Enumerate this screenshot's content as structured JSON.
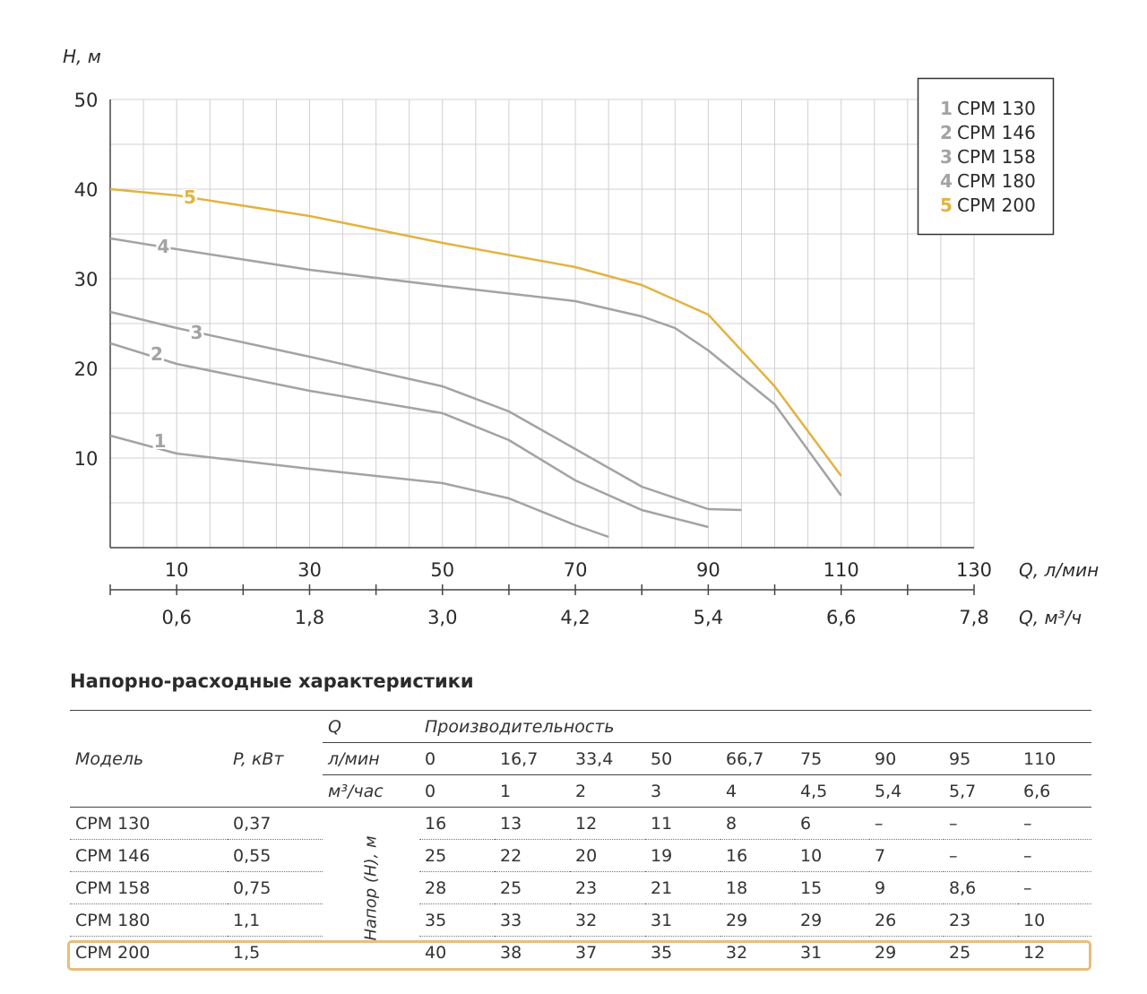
{
  "chart_data": {
    "type": "line",
    "ylabel": "H, м",
    "xlabel": "Q, л/мин",
    "x2label": "Q, м³/ч",
    "ylim": [
      0,
      50
    ],
    "xlim": [
      0,
      130
    ],
    "yticks": [
      "10",
      "20",
      "30",
      "40",
      "50"
    ],
    "xticks": [
      "10",
      "30",
      "50",
      "70",
      "90",
      "110",
      "130"
    ],
    "x2ticks": [
      "0,6",
      "1,8",
      "3,0",
      "4,2",
      "5,4",
      "6,6",
      "7,8"
    ],
    "grid": true,
    "legend_position": "top-right",
    "legend": [
      {
        "num": "1",
        "name": "CPM 130"
      },
      {
        "num": "2",
        "name": "CPM 146"
      },
      {
        "num": "3",
        "name": "CPM 158"
      },
      {
        "num": "4",
        "name": "CPM 180"
      },
      {
        "num": "5",
        "name": "CPM 200"
      }
    ],
    "series": [
      {
        "name": "CPM 130",
        "label": "1",
        "color": "#a3a3a3",
        "label_at": [
          7.5,
          11.5
        ],
        "points": [
          [
            0,
            12.5
          ],
          [
            10,
            10.5
          ],
          [
            30,
            8.8
          ],
          [
            50,
            7.2
          ],
          [
            60,
            5.5
          ],
          [
            70,
            2.5
          ],
          [
            75,
            1.2
          ]
        ]
      },
      {
        "name": "CPM 146",
        "label": "2",
        "color": "#a3a3a3",
        "label_at": [
          7,
          21.2
        ],
        "points": [
          [
            0,
            22.8
          ],
          [
            10,
            20.5
          ],
          [
            30,
            17.5
          ],
          [
            50,
            15
          ],
          [
            60,
            12
          ],
          [
            70,
            7.5
          ],
          [
            80,
            4.2
          ],
          [
            90,
            2.3
          ]
        ]
      },
      {
        "name": "CPM 158",
        "label": "3",
        "color": "#a3a3a3",
        "label_at": [
          13,
          23.6
        ],
        "points": [
          [
            0,
            26.3
          ],
          [
            10,
            24.5
          ],
          [
            30,
            21.3
          ],
          [
            50,
            18
          ],
          [
            60,
            15.2
          ],
          [
            70,
            11
          ],
          [
            80,
            6.8
          ],
          [
            90,
            4.3
          ],
          [
            95,
            4.2
          ]
        ]
      },
      {
        "name": "CPM 180",
        "label": "4",
        "color": "#a3a3a3",
        "label_at": [
          8,
          33.2
        ],
        "points": [
          [
            0,
            34.5
          ],
          [
            10,
            33.3
          ],
          [
            30,
            31
          ],
          [
            50,
            29.2
          ],
          [
            70,
            27.5
          ],
          [
            80,
            25.8
          ],
          [
            85,
            24.5
          ],
          [
            90,
            22
          ],
          [
            100,
            16
          ],
          [
            110,
            5.8
          ]
        ]
      },
      {
        "name": "CPM 200",
        "label": "5",
        "color": "#e3b341",
        "label_at": [
          12,
          38.7
        ],
        "points": [
          [
            0,
            40
          ],
          [
            10,
            39.3
          ],
          [
            30,
            37
          ],
          [
            50,
            34
          ],
          [
            70,
            31.3
          ],
          [
            80,
            29.3
          ],
          [
            90,
            26
          ],
          [
            100,
            18
          ],
          [
            110,
            8
          ]
        ]
      }
    ]
  },
  "table": {
    "title": "Напорно-расходные характеристики",
    "q_label": "Q",
    "performance_label": "Производительность",
    "model_header": "Модель",
    "power_header": "P, кВт",
    "lmin_label": "л/мин",
    "m3h_label": "м³/час",
    "lmin_values": [
      "0",
      "16,7",
      "33,4",
      "50",
      "66,7",
      "75",
      "90",
      "95",
      "110"
    ],
    "m3h_values": [
      "0",
      "1",
      "2",
      "3",
      "4",
      "4,5",
      "5,4",
      "5,7",
      "6,6"
    ],
    "head_label": "Напор (H), м",
    "rows": [
      {
        "model": "CPM 130",
        "power": "0,37",
        "values": [
          "16",
          "13",
          "12",
          "11",
          "8",
          "6",
          "–",
          "–",
          "–"
        ]
      },
      {
        "model": "CPM 146",
        "power": "0,55",
        "values": [
          "25",
          "22",
          "20",
          "19",
          "16",
          "10",
          "7",
          "–",
          "–"
        ]
      },
      {
        "model": "CPM 158",
        "power": "0,75",
        "values": [
          "28",
          "25",
          "23",
          "21",
          "18",
          "15",
          "9",
          "8,6",
          "–"
        ]
      },
      {
        "model": "CPM 180",
        "power": "1,1",
        "values": [
          "35",
          "33",
          "32",
          "31",
          "29",
          "29",
          "26",
          "23",
          "10"
        ]
      },
      {
        "model": "CPM 200",
        "power": "1,5",
        "values": [
          "40",
          "38",
          "37",
          "35",
          "32",
          "31",
          "29",
          "25",
          "12"
        ]
      }
    ]
  }
}
